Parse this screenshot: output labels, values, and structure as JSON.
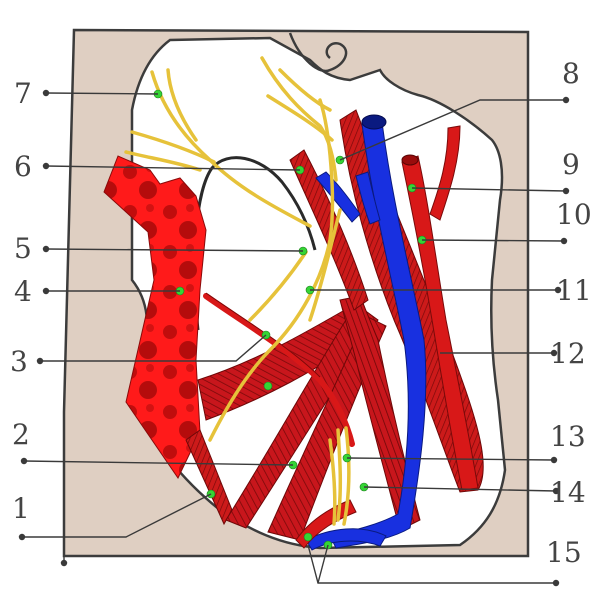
{
  "figure": {
    "background_color": "#ffffff",
    "frame_fill_color": "#dfcfc2",
    "frame_stroke_color": "#3c3c3c",
    "colors": {
      "muscle": "#c8161c",
      "muscle_dark": "#7a0a0a",
      "artery": "#d81818",
      "vein": "#1830e0",
      "nerve": "#e6c23a",
      "bright_muscle": "#ff1a1a",
      "marker": "#35d435"
    }
  },
  "callouts": {
    "left": [
      {
        "number": "7",
        "structure": "nerve"
      },
      {
        "number": "6",
        "structure": "artery"
      },
      {
        "number": "5",
        "structure": "nerve"
      },
      {
        "number": "4",
        "structure": "muscle"
      },
      {
        "number": "3",
        "structure": "artery"
      },
      {
        "number": "2",
        "structure": "muscle"
      },
      {
        "number": "1",
        "structure": "muscle"
      }
    ],
    "right": [
      {
        "number": "8",
        "structure": "nerve"
      },
      {
        "number": "9",
        "structure": "artery"
      },
      {
        "number": "10",
        "structure": "artery"
      },
      {
        "number": "11",
        "structure": "nerve"
      },
      {
        "number": "12",
        "structure": "vein"
      },
      {
        "number": "13",
        "structure": "nerve"
      },
      {
        "number": "14",
        "structure": "muscle"
      },
      {
        "number": "15",
        "structure": "vein"
      }
    ]
  }
}
